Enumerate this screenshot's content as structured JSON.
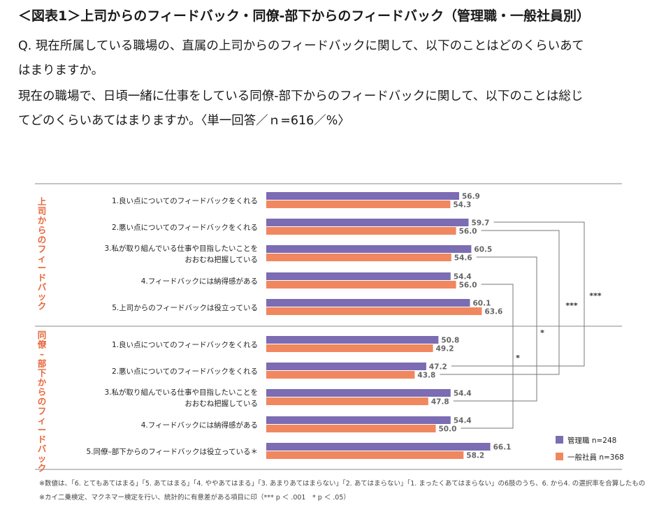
{
  "header": {
    "title": "＜図表1＞上司からのフィードバック・同僚-部下からのフィードバック（管理職・一般社員別）",
    "question_lines": [
      "Q. 現在所属している職場の、直属の上司からのフィードバックに関して、以下のことはどのくらいあて",
      "はまりますか。",
      "現在の職場で、日頃一緒に仕事をしている同僚-部下からのフィードバックに関して、以下のことは総じ",
      "てどのくらいあてはまりますか。〈単一回答／ｎ=616／%〉"
    ]
  },
  "chart_data": {
    "type": "bar",
    "orientation": "horizontal",
    "groups": [
      {
        "label": "上司からのフィードバック",
        "categories": [
          [
            "1.良い点についてのフィードバックをくれる"
          ],
          [
            "2.悪い点についてのフィードバックをくれる"
          ],
          [
            "3.私が取り組んでいる仕事や目指したいことを",
            "おおむね把握している"
          ],
          [
            "4.フィードバックには納得感がある"
          ],
          [
            "5.上司からのフィードバックは役立っている"
          ]
        ]
      },
      {
        "label": "同僚–部下からのフィードバック",
        "categories": [
          [
            "1.良い点についてのフィードバックをくれる"
          ],
          [
            "2.悪い点についてのフィードバックをくれる"
          ],
          [
            "3.私が取り組んでいる仕事や目指したいことを",
            "おおむね把握している"
          ],
          [
            "4.フィードバックには納得感がある"
          ],
          [
            "5.同僚–部下からのフィードバックは役立っている＊"
          ]
        ]
      }
    ],
    "series": [
      {
        "name": "管理職 n=248",
        "color": "#7b6cb3",
        "values": [
          56.9,
          59.7,
          60.5,
          54.4,
          60.1,
          50.8,
          47.2,
          54.4,
          54.4,
          66.1
        ]
      },
      {
        "name": "一般社員 n=368",
        "color": "#f0875f",
        "values": [
          54.3,
          56.0,
          54.6,
          56.0,
          63.6,
          49.2,
          43.8,
          47.8,
          50.0,
          58.2
        ]
      }
    ],
    "significance": [
      {
        "from": 1,
        "to": 6,
        "series": 0,
        "mark": "***"
      },
      {
        "from": 1,
        "to": 6,
        "series": 1,
        "mark": "***"
      },
      {
        "from": 2,
        "to": 7,
        "series": 1,
        "mark": "*"
      },
      {
        "from": 3,
        "to": 8,
        "series": 1,
        "mark": "*"
      }
    ],
    "legend_position": "bottom-right",
    "grid": false
  },
  "notes": [
    "※数値は、「6. とてもあてはまる」「5. あてはまる」「4. ややあてはまる」「3. あまりあてはまらない」「2. あてはまらない」「1. まったくあてはまらない」の6肢のうち、6. から4. の選択率を合算したもの",
    "※カイ二乗検定、マクネマー検定を行い、統計的に有意差がある項目に印（*** p ＜ .001　* p ＜ .05）"
  ]
}
